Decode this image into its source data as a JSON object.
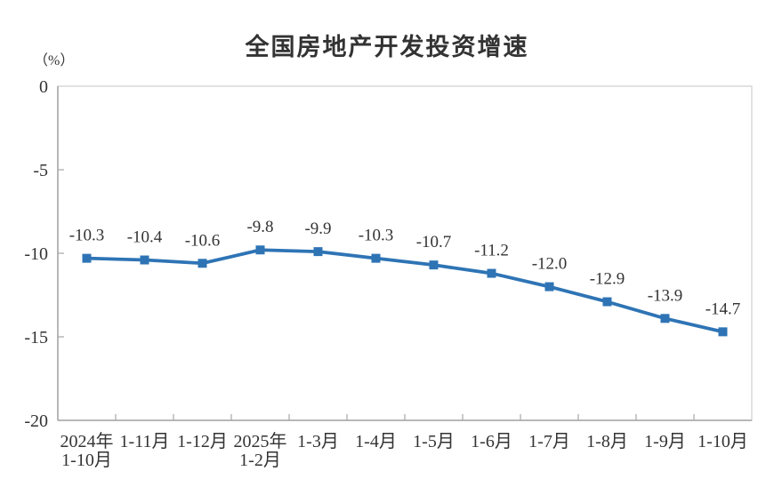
{
  "chart_data": {
    "type": "line",
    "title": "全国房地产开发投资增速",
    "unit_label": "（%）",
    "categories": [
      "2024年\n1-10月",
      "1-11月",
      "1-12月",
      "2025年\n1-2月",
      "1-3月",
      "1-4月",
      "1-5月",
      "1-6月",
      "1-7月",
      "1-8月",
      "1-9月",
      "1-10月"
    ],
    "values": [
      -10.3,
      -10.4,
      -10.6,
      -9.8,
      -9.9,
      -10.3,
      -10.7,
      -11.2,
      -12.0,
      -12.9,
      -13.9,
      -14.7
    ],
    "data_labels": [
      "-10.3",
      "-10.4",
      "-10.6",
      "-9.8",
      "-9.9",
      "-10.3",
      "-10.7",
      "-11.2",
      "-12.0",
      "-12.9",
      "-13.9",
      "-14.7"
    ],
    "y_ticks": [
      0,
      -5,
      -10,
      -15,
      -20
    ],
    "ylim": [
      -20,
      0
    ],
    "xlabel": "",
    "ylabel": "(%)",
    "grid": false,
    "legend": "none",
    "marker": "square",
    "colors": {
      "line": "#2E74B5",
      "marker": "#2E74B5",
      "text": "#333333",
      "axis": "#A6A6A6",
      "border": "#D9D9D9"
    }
  }
}
